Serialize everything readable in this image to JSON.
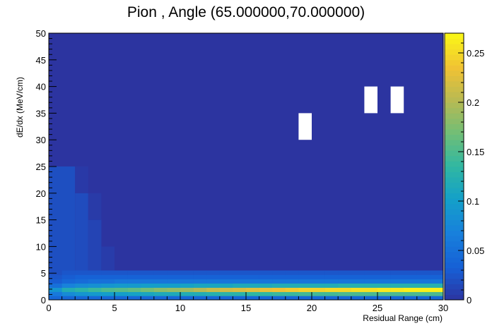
{
  "chart_data": {
    "type": "heatmap",
    "title": "Pion , Angle (65.000000,70.000000)",
    "xlabel": "Residual Range (cm)",
    "ylabel": "dE/dx (MeV/cm)",
    "xlim": [
      0,
      30
    ],
    "ylim": [
      0,
      50
    ],
    "zlim": [
      0,
      0.27
    ],
    "bin_width_x": 1,
    "bin_height_y": 5,
    "x_ticks": [
      "0",
      "5",
      "10",
      "15",
      "20",
      "25",
      "30"
    ],
    "y_ticks": [
      "0",
      "5",
      "10",
      "15",
      "20",
      "25",
      "30",
      "35",
      "40",
      "45",
      "50"
    ],
    "z_ticks": [
      "0",
      "0.05",
      "0.1",
      "0.15",
      "0.2",
      "0.25"
    ],
    "palette": "ROOT kBird",
    "empty_bins": [
      {
        "x": [
          19,
          20
        ],
        "y": [
          30,
          35
        ]
      },
      {
        "x": [
          24,
          25
        ],
        "y": [
          35,
          40
        ]
      },
      {
        "x": [
          26,
          27
        ],
        "y": [
          35,
          40
        ]
      }
    ],
    "band_columns_dedx_lt_5": [
      {
        "x": 0,
        "values": [
          0.04,
          0.06,
          0.09,
          0.05,
          0.03,
          0.025,
          0.02
        ]
      },
      {
        "x": 1,
        "values": [
          0.04,
          0.08,
          0.12,
          0.07,
          0.04,
          0.03,
          0.025
        ]
      },
      {
        "x": 2,
        "values": [
          0.04,
          0.09,
          0.13,
          0.08,
          0.045,
          0.035,
          0.025
        ]
      },
      {
        "x": 3,
        "values": [
          0.04,
          0.095,
          0.14,
          0.085,
          0.05,
          0.035,
          0.025
        ]
      },
      {
        "x": 4,
        "values": [
          0.04,
          0.1,
          0.15,
          0.09,
          0.05,
          0.035,
          0.025
        ]
      },
      {
        "x": 5,
        "values": [
          0.04,
          0.1,
          0.155,
          0.095,
          0.055,
          0.035,
          0.025
        ]
      },
      {
        "x": 6,
        "values": [
          0.04,
          0.105,
          0.16,
          0.095,
          0.055,
          0.035,
          0.025
        ]
      },
      {
        "x": 7,
        "values": [
          0.04,
          0.11,
          0.17,
          0.1,
          0.055,
          0.035,
          0.025
        ]
      },
      {
        "x": 8,
        "values": [
          0.04,
          0.115,
          0.18,
          0.1,
          0.055,
          0.035,
          0.025
        ]
      },
      {
        "x": 9,
        "values": [
          0.04,
          0.115,
          0.185,
          0.1,
          0.055,
          0.035,
          0.025
        ]
      },
      {
        "x": 10,
        "values": [
          0.04,
          0.12,
          0.19,
          0.105,
          0.055,
          0.035,
          0.025
        ]
      },
      {
        "x": 11,
        "values": [
          0.04,
          0.12,
          0.2,
          0.11,
          0.055,
          0.035,
          0.025
        ]
      },
      {
        "x": 12,
        "values": [
          0.04,
          0.125,
          0.21,
          0.11,
          0.055,
          0.035,
          0.025
        ]
      },
      {
        "x": 13,
        "values": [
          0.04,
          0.13,
          0.215,
          0.11,
          0.055,
          0.035,
          0.025
        ]
      },
      {
        "x": 14,
        "values": [
          0.04,
          0.13,
          0.22,
          0.115,
          0.055,
          0.035,
          0.025
        ]
      },
      {
        "x": 15,
        "values": [
          0.04,
          0.135,
          0.225,
          0.115,
          0.055,
          0.035,
          0.025
        ]
      },
      {
        "x": 16,
        "values": [
          0.04,
          0.135,
          0.23,
          0.115,
          0.055,
          0.035,
          0.025
        ]
      },
      {
        "x": 17,
        "values": [
          0.04,
          0.14,
          0.235,
          0.12,
          0.055,
          0.035,
          0.025
        ]
      },
      {
        "x": 18,
        "values": [
          0.04,
          0.14,
          0.24,
          0.12,
          0.055,
          0.035,
          0.025
        ]
      },
      {
        "x": 19,
        "values": [
          0.04,
          0.145,
          0.245,
          0.12,
          0.055,
          0.035,
          0.025
        ]
      },
      {
        "x": 20,
        "values": [
          0.04,
          0.145,
          0.245,
          0.12,
          0.055,
          0.035,
          0.025
        ]
      },
      {
        "x": 21,
        "values": [
          0.04,
          0.145,
          0.25,
          0.12,
          0.055,
          0.035,
          0.025
        ]
      },
      {
        "x": 22,
        "values": [
          0.04,
          0.15,
          0.25,
          0.125,
          0.055,
          0.035,
          0.025
        ]
      },
      {
        "x": 23,
        "values": [
          0.04,
          0.15,
          0.255,
          0.125,
          0.055,
          0.035,
          0.025
        ]
      },
      {
        "x": 24,
        "values": [
          0.04,
          0.15,
          0.255,
          0.125,
          0.055,
          0.035,
          0.025
        ]
      },
      {
        "x": 25,
        "values": [
          0.04,
          0.15,
          0.26,
          0.125,
          0.055,
          0.035,
          0.025
        ]
      },
      {
        "x": 26,
        "values": [
          0.04,
          0.15,
          0.26,
          0.125,
          0.055,
          0.035,
          0.025
        ]
      },
      {
        "x": 27,
        "values": [
          0.04,
          0.15,
          0.265,
          0.125,
          0.055,
          0.035,
          0.025
        ]
      },
      {
        "x": 28,
        "values": [
          0.04,
          0.15,
          0.265,
          0.125,
          0.055,
          0.035,
          0.025
        ]
      },
      {
        "x": 29,
        "values": [
          0.04,
          0.15,
          0.265,
          0.125,
          0.055,
          0.035,
          0.025
        ]
      }
    ],
    "band_y_edges": [
      0,
      0.75,
      1.5,
      2.3,
      3.1,
      3.9,
      4.7,
      5.5
    ],
    "tail_bins": [
      {
        "x": [
          0,
          2
        ],
        "y": [
          5,
          25
        ],
        "value": 0.02
      },
      {
        "x": [
          2,
          3
        ],
        "y": [
          5,
          20
        ],
        "value": 0.018
      },
      {
        "x": [
          3,
          4
        ],
        "y": [
          5,
          15
        ],
        "value": 0.012
      },
      {
        "x": [
          2,
          3
        ],
        "y": [
          20,
          25
        ],
        "value": 0.004
      },
      {
        "x": [
          4,
          5
        ],
        "y": [
          5,
          10
        ],
        "value": 0.006
      },
      {
        "x": [
          3,
          4
        ],
        "y": [
          15,
          20
        ],
        "value": 0.005
      }
    ],
    "background_value": 0.0
  }
}
